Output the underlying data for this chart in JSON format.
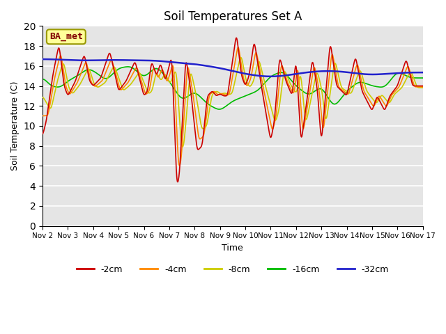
{
  "title": "Soil Temperatures Set A",
  "xlabel": "Time",
  "ylabel": "Soil Temperature (C)",
  "ylim": [
    0,
    20
  ],
  "yticks": [
    0,
    2,
    4,
    6,
    8,
    10,
    12,
    14,
    16,
    18,
    20
  ],
  "xtick_labels": [
    "Nov 2",
    "Nov 3",
    "Nov 4",
    "Nov 5",
    "Nov 6",
    "Nov 7",
    "Nov 8",
    "Nov 9",
    "Nov 10",
    "Nov 11",
    "Nov 12",
    "Nov 13",
    "Nov 14",
    "Nov 15",
    "Nov 16",
    "Nov 17"
  ],
  "legend_labels": [
    "-2cm",
    "-4cm",
    "-8cm",
    "-16cm",
    "-32cm"
  ],
  "line_colors": [
    "#cc0000",
    "#ff8800",
    "#cccc00",
    "#00bb00",
    "#2222cc"
  ],
  "bg_color": "#e5e5e5",
  "plot_bg": "#e5e5e5",
  "annotation_text": "BA_met",
  "annotation_fg": "#800000",
  "annotation_bg": "#ffff99",
  "annotation_border": "#999900",
  "grid_color": "#ffffff",
  "title_fontsize": 12,
  "axis_fontsize": 9,
  "tick_fontsize": 7.5,
  "legend_fontsize": 9
}
